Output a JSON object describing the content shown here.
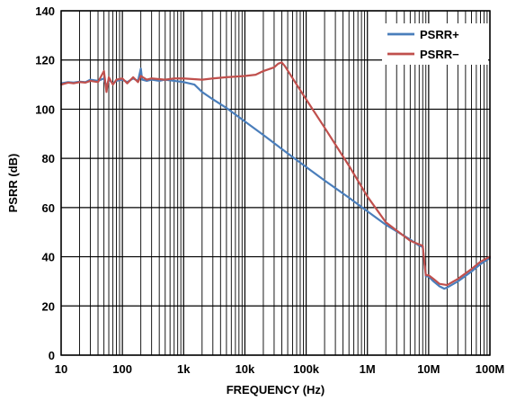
{
  "chart_data": {
    "type": "line",
    "xlabel": "FREQUENCY (Hz)",
    "ylabel": "PSRR (dB)",
    "x_scale": "log",
    "xlim": [
      10,
      100000000
    ],
    "ylim": [
      0,
      140
    ],
    "grid": true,
    "legend_position": "top-right",
    "x_ticks": [
      {
        "value": 10,
        "label": "10"
      },
      {
        "value": 100,
        "label": "100"
      },
      {
        "value": 1000,
        "label": "1k"
      },
      {
        "value": 10000,
        "label": "10k"
      },
      {
        "value": 100000,
        "label": "100k"
      },
      {
        "value": 1000000,
        "label": "1M"
      },
      {
        "value": 10000000,
        "label": "10M"
      },
      {
        "value": 100000000,
        "label": "100M"
      }
    ],
    "y_ticks": [
      0,
      20,
      40,
      60,
      80,
      100,
      120,
      140
    ],
    "series": [
      {
        "name": "PSRR+",
        "color": "#4a7ebb",
        "points": [
          [
            10,
            110.5
          ],
          [
            13,
            111
          ],
          [
            16,
            110.8
          ],
          [
            20,
            111.2
          ],
          [
            25,
            111
          ],
          [
            30,
            112
          ],
          [
            40,
            111.5
          ],
          [
            50,
            112.5
          ],
          [
            55,
            109
          ],
          [
            60,
            112
          ],
          [
            70,
            110.5
          ],
          [
            80,
            111.5
          ],
          [
            100,
            112
          ],
          [
            120,
            111
          ],
          [
            150,
            112.5
          ],
          [
            180,
            111.5
          ],
          [
            200,
            116.5
          ],
          [
            210,
            112
          ],
          [
            250,
            111.5
          ],
          [
            300,
            112
          ],
          [
            400,
            111.5
          ],
          [
            500,
            112
          ],
          [
            700,
            111.5
          ],
          [
            1000,
            111
          ],
          [
            1500,
            110
          ],
          [
            2000,
            107
          ],
          [
            3000,
            104
          ],
          [
            5000,
            100.5
          ],
          [
            10000,
            95
          ],
          [
            20000,
            89.5
          ],
          [
            50000,
            82
          ],
          [
            100000,
            76.5
          ],
          [
            200000,
            71
          ],
          [
            500000,
            64
          ],
          [
            1000000,
            58.5
          ],
          [
            2000000,
            53
          ],
          [
            5000000,
            47
          ],
          [
            7000000,
            44.5
          ],
          [
            8000000,
            44
          ],
          [
            8500000,
            38
          ],
          [
            9000000,
            32
          ],
          [
            10000000,
            32
          ],
          [
            12000000,
            30
          ],
          [
            15000000,
            28
          ],
          [
            18000000,
            27
          ],
          [
            20000000,
            27.5
          ],
          [
            30000000,
            30
          ],
          [
            50000000,
            34
          ],
          [
            70000000,
            37
          ],
          [
            100000000,
            39.5
          ]
        ]
      },
      {
        "name": "PSRR−",
        "color": "#c0504d",
        "points": [
          [
            10,
            110
          ],
          [
            13,
            110.8
          ],
          [
            16,
            110.5
          ],
          [
            20,
            111
          ],
          [
            25,
            110.8
          ],
          [
            30,
            111.5
          ],
          [
            40,
            111
          ],
          [
            50,
            115.5
          ],
          [
            55,
            107
          ],
          [
            60,
            113
          ],
          [
            70,
            110
          ],
          [
            80,
            112
          ],
          [
            100,
            112.5
          ],
          [
            120,
            110.5
          ],
          [
            150,
            113
          ],
          [
            180,
            111
          ],
          [
            200,
            113.5
          ],
          [
            250,
            112
          ],
          [
            300,
            112.5
          ],
          [
            500,
            112
          ],
          [
            700,
            112.5
          ],
          [
            1000,
            112.5
          ],
          [
            2000,
            112
          ],
          [
            3000,
            112.5
          ],
          [
            5000,
            113
          ],
          [
            10000,
            113.5
          ],
          [
            15000,
            114
          ],
          [
            20000,
            115.5
          ],
          [
            30000,
            117
          ],
          [
            35000,
            118.5
          ],
          [
            40000,
            119
          ],
          [
            45000,
            117.5
          ],
          [
            70000,
            110
          ],
          [
            100000,
            104
          ],
          [
            200000,
            92.5
          ],
          [
            500000,
            77
          ],
          [
            1000000,
            64.5
          ],
          [
            2000000,
            54
          ],
          [
            5000000,
            46.5
          ],
          [
            7000000,
            45
          ],
          [
            8000000,
            44.5
          ],
          [
            8500000,
            38
          ],
          [
            9000000,
            32.5
          ],
          [
            10000000,
            32.5
          ],
          [
            12000000,
            31
          ],
          [
            15000000,
            29
          ],
          [
            20000000,
            28.5
          ],
          [
            30000000,
            31
          ],
          [
            50000000,
            35
          ],
          [
            70000000,
            38
          ],
          [
            100000000,
            40
          ]
        ]
      }
    ]
  }
}
